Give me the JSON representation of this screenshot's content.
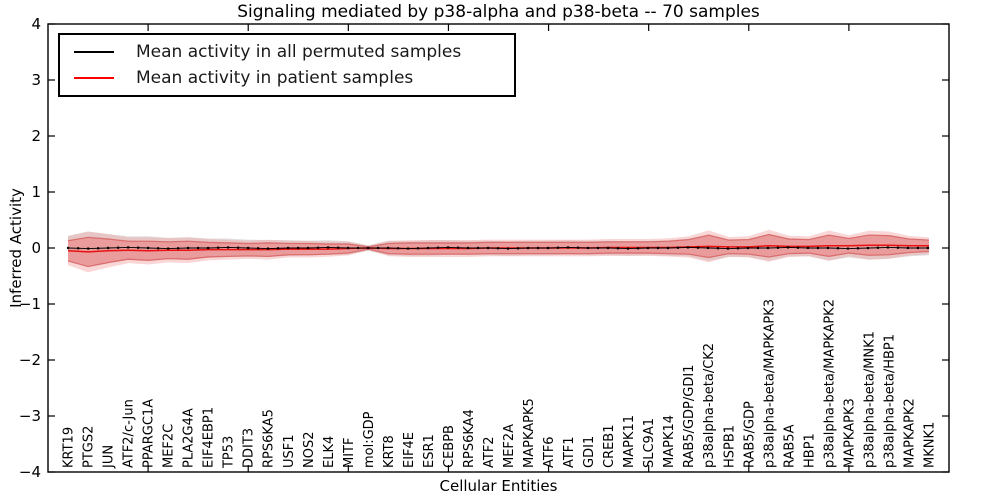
{
  "title": "Signaling mediated by p38-alpha and p38-beta -- 70 samples",
  "chart_data": {
    "type": "line",
    "title": "Signaling mediated by p38-alpha and p38-beta -- 70 samples",
    "xlabel": "Cellular Entities",
    "ylabel": "Inferred Activity",
    "xlim": [
      0,
      45
    ],
    "ylim": [
      -4,
      4
    ],
    "yticks": [
      4,
      3,
      2,
      1,
      0,
      -1,
      -2,
      -3,
      -4
    ],
    "xtick_positions": [
      5,
      10,
      15,
      20,
      25,
      30,
      35,
      40
    ],
    "grid": false,
    "legend_position": "upper-left",
    "categories": [
      "KRT19",
      "PTGS2",
      "JUN",
      "ATF2/c-Jun",
      "PPARGC1A",
      "MEF2C",
      "PLA2G4A",
      "EIF4EBP1",
      "TP53",
      "DDIT3",
      "RPS6KA5",
      "USF1",
      "NOS2",
      "ELK4",
      "MITF",
      "mol:GDP",
      "KRT8",
      "EIF4E",
      "ESR1",
      "CEBPB",
      "RPS6KA4",
      "ATF2",
      "MEF2A",
      "MAPKAPK5",
      "ATF6",
      "ATF1",
      "GDI1",
      "CREB1",
      "MAPK11",
      "SLC9A1",
      "MAPK14",
      "RAB5/GDP/GDI1",
      "p38alpha-beta/CK2",
      "HSPB1",
      "RAB5/GDP",
      "p38alpha-beta/MAPKAPK3",
      "RAB5A",
      "HBP1",
      "p38alpha-beta/MAPKAPK2",
      "MAPKAPK3",
      "p38alpha-beta/MNK1",
      "p38alpha-beta/HBP1",
      "MAPKAPK2",
      "MKNK1"
    ],
    "series": [
      {
        "name": "Mean activity in all permuted samples",
        "color": "#000000",
        "values": [
          0.0,
          -0.01,
          0.0,
          0.01,
          0.0,
          -0.01,
          0.0,
          0.0,
          0.01,
          0.0,
          -0.01,
          0.0,
          0.0,
          0.01,
          0.0,
          0.0,
          0.0,
          -0.01,
          0.0,
          0.01,
          0.0,
          0.0,
          -0.01,
          0.0,
          0.0,
          0.01,
          0.0,
          0.0,
          -0.01,
          0.0,
          0.0,
          0.01,
          0.0,
          -0.01,
          0.0,
          0.0,
          0.01,
          0.0,
          0.0,
          -0.01,
          0.0,
          0.01,
          0.0,
          0.0
        ],
        "band_halfwidth": [
          0.22,
          0.3,
          0.25,
          0.2,
          0.21,
          0.19,
          0.19,
          0.17,
          0.16,
          0.15,
          0.15,
          0.14,
          0.13,
          0.13,
          0.12,
          0.05,
          0.13,
          0.13,
          0.14,
          0.13,
          0.13,
          0.13,
          0.13,
          0.13,
          0.13,
          0.13,
          0.13,
          0.13,
          0.13,
          0.13,
          0.14,
          0.16,
          0.23,
          0.15,
          0.16,
          0.23,
          0.16,
          0.15,
          0.22,
          0.16,
          0.21,
          0.2,
          0.15,
          0.13
        ],
        "band_color": "#c8c8c8"
      },
      {
        "name": "Mean activity in patient samples",
        "color": "#e81212",
        "values": [
          -0.05,
          -0.07,
          -0.05,
          -0.04,
          -0.05,
          -0.04,
          -0.04,
          -0.03,
          -0.03,
          -0.03,
          -0.03,
          -0.02,
          -0.02,
          -0.02,
          -0.01,
          0.0,
          -0.01,
          -0.01,
          -0.01,
          -0.01,
          -0.01,
          0.0,
          0.0,
          0.0,
          0.0,
          0.0,
          0.0,
          0.01,
          0.01,
          0.01,
          0.01,
          0.02,
          0.03,
          0.02,
          0.02,
          0.04,
          0.03,
          0.03,
          0.04,
          0.04,
          0.05,
          0.05,
          0.04,
          0.04
        ],
        "band_halfwidth": [
          0.18,
          0.26,
          0.21,
          0.16,
          0.17,
          0.15,
          0.16,
          0.13,
          0.12,
          0.11,
          0.12,
          0.1,
          0.1,
          0.09,
          0.08,
          0.02,
          0.09,
          0.1,
          0.1,
          0.1,
          0.1,
          0.1,
          0.1,
          0.1,
          0.1,
          0.1,
          0.1,
          0.1,
          0.1,
          0.1,
          0.11,
          0.13,
          0.2,
          0.12,
          0.13,
          0.2,
          0.13,
          0.12,
          0.19,
          0.13,
          0.18,
          0.17,
          0.12,
          0.1
        ],
        "band_color": "#ec8c8c",
        "band_edge_color": "#d96a6a"
      }
    ]
  }
}
